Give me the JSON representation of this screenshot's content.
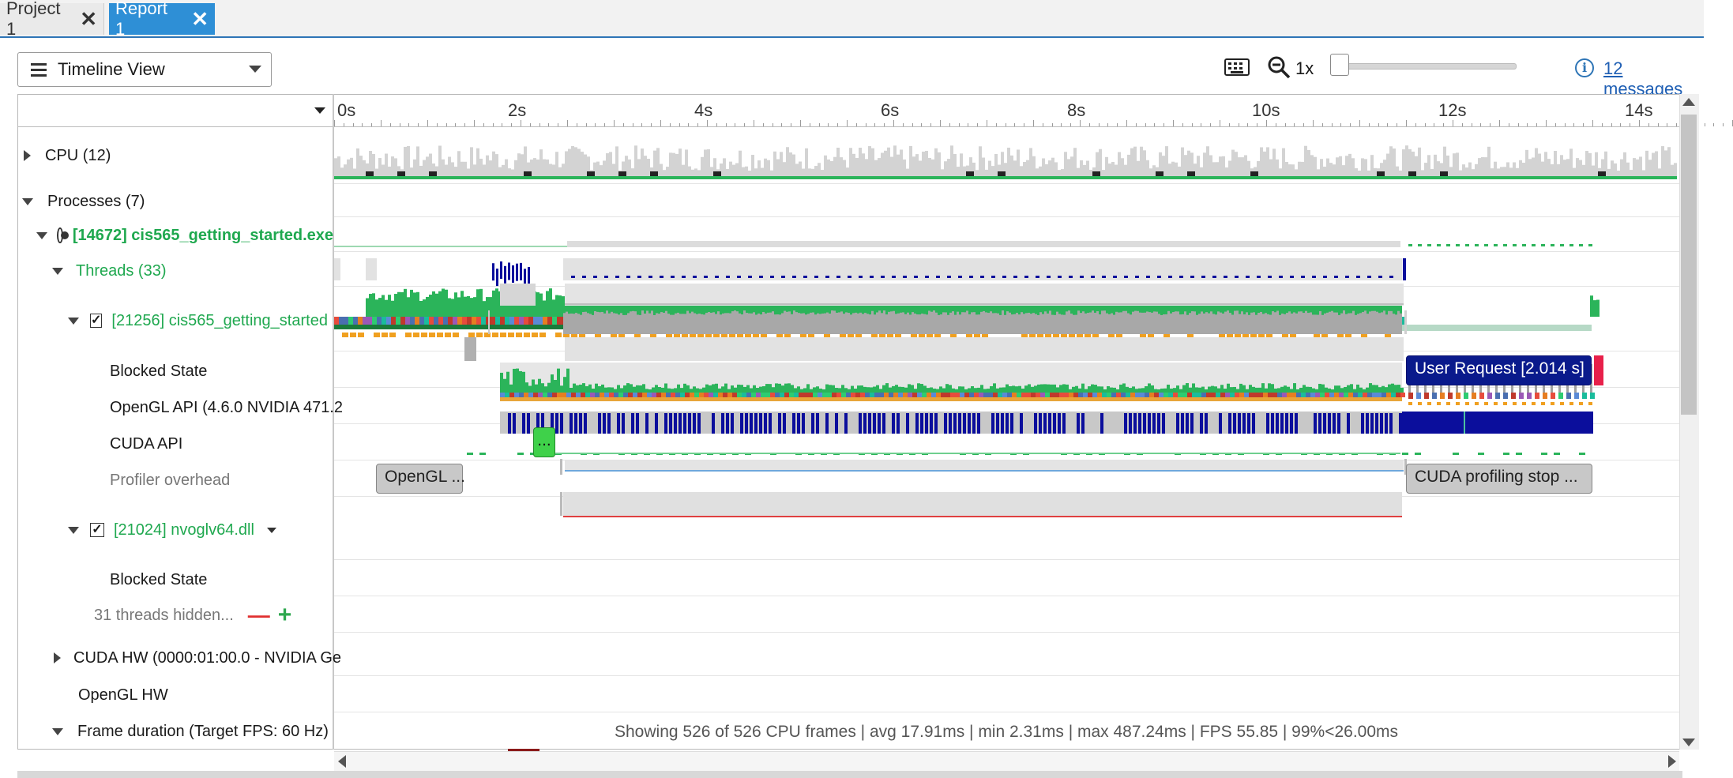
{
  "tabs": [
    {
      "label": "Project 1",
      "close": "✕"
    },
    {
      "label": "Report 1",
      "close": "✕"
    }
  ],
  "toolbar": {
    "view_label": "Timeline View",
    "zoom_level": "1x",
    "zoom_slider_value": 0,
    "messages_link": "12 messages",
    "info_glyph": "i"
  },
  "ruler": {
    "ticks": [
      "0s",
      "2s",
      "4s",
      "6s",
      "8s",
      "10s",
      "12s",
      "14s"
    ]
  },
  "tree": {
    "cpu": "CPU (12)",
    "processes": "Processes (7)",
    "process_main": "[14672] cis565_getting_started.exe",
    "threads": "Threads (33)",
    "thread_main": "[21256] cis565_getting_started",
    "blocked_state_1": "Blocked State",
    "opengl_api": "OpenGL API (4.6.0 NVIDIA 471.2",
    "cuda_api": "CUDA API",
    "profiler_overhead": "Profiler overhead",
    "thread_driver": "[21024] nvoglv64.dll",
    "blocked_state_2": "Blocked State",
    "threads_hidden": "31 threads hidden...",
    "minus_glyph": "—",
    "plus_glyph": "+",
    "cuda_hw": "CUDA HW (0000:01:00.0 - NVIDIA Ge",
    "opengl_hw": "OpenGL HW",
    "frame_duration": "Frame duration (Target FPS: 60 Hz)",
    "check_glyph": "✓"
  },
  "timeline": {
    "user_request": "User Request [2.014 s]",
    "cuda_ellipsis": "...",
    "opengl_label": "OpenGL ...",
    "cuda_profiling_stop": "CUDA profiling stop ...",
    "status": "Showing 526 of 526 CPU frames | avg 17.91ms | min 2.31ms | max 487.24ms | FPS 55.85 | 99%<26.00ms"
  },
  "colors": {
    "accent": "#2e8fd6",
    "cpu_green": "#2bb45a",
    "blocked_blue": "#0b0e9c",
    "user_request_bg": "#0a1a8c",
    "cuda_green": "#3fd14a",
    "gray_fill": "#d3d3d3"
  }
}
